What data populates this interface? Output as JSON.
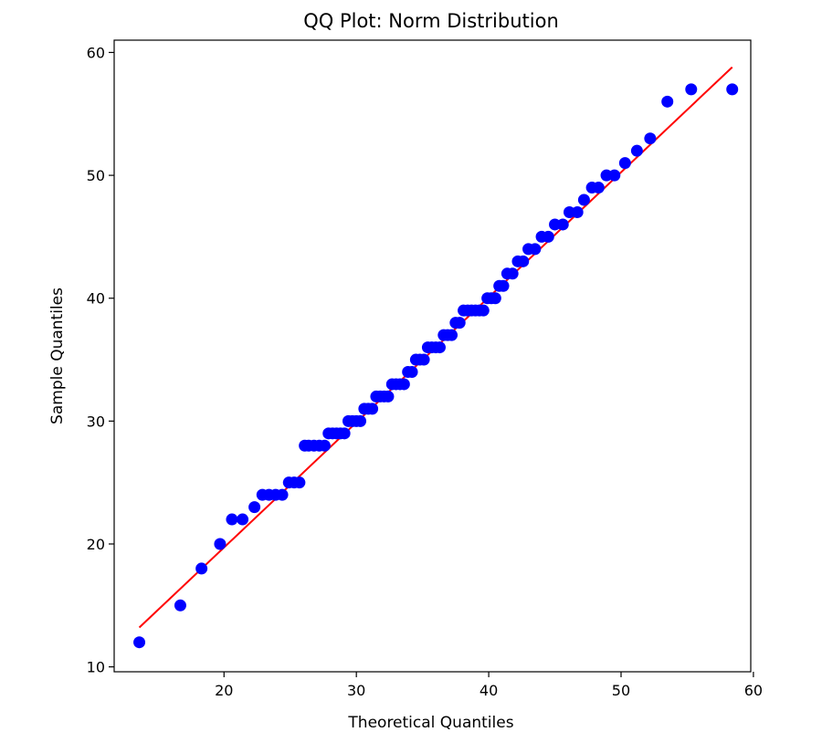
{
  "chart_data": {
    "type": "scatter",
    "title": "QQ Plot: Norm Distribution",
    "xlabel": "Theoretical Quantiles",
    "ylabel": "Sample Quantiles",
    "xlim": [
      11.7,
      59.8
    ],
    "ylim": [
      9.6,
      61
    ],
    "xticks": [
      20,
      30,
      40,
      50,
      60
    ],
    "yticks": [
      10,
      20,
      30,
      40,
      50,
      60
    ],
    "grid": false,
    "colors": {
      "points": "#0000ff",
      "line": "#ff0000",
      "axes": "#000000"
    },
    "series": [
      {
        "kind": "points",
        "x": [
          13.6,
          16.7,
          18.3,
          19.7,
          20.6,
          21.4,
          22.3,
          22.9,
          23.4,
          23.9,
          24.4,
          24.9,
          25.3,
          25.7,
          26.1,
          26.4,
          26.8,
          27.2,
          27.6,
          27.9,
          28.2,
          28.5,
          28.8,
          29.1,
          29.4,
          29.7,
          30.0,
          30.3,
          30.6,
          30.9,
          31.2,
          31.5,
          31.8,
          32.1,
          32.4,
          32.7,
          33.0,
          33.3,
          33.6,
          33.9,
          34.2,
          34.5,
          34.8,
          35.1,
          35.4,
          35.7,
          36.0,
          36.3,
          36.6,
          36.9,
          37.2,
          37.5,
          37.8,
          38.1,
          38.4,
          38.7,
          39.0,
          39.3,
          39.6,
          39.9,
          40.2,
          40.5,
          40.8,
          41.1,
          41.4,
          41.8,
          42.2,
          42.6,
          43.0,
          43.5,
          44.0,
          44.5,
          45.0,
          45.6,
          46.1,
          46.7,
          47.2,
          47.8,
          48.3,
          48.9,
          49.5,
          50.3,
          51.2,
          52.2,
          53.5,
          55.3,
          58.4
        ],
        "y": [
          12,
          15,
          18,
          20,
          22,
          22,
          23,
          24,
          24,
          24,
          24,
          25,
          25,
          25,
          28,
          28,
          28,
          28,
          28,
          29,
          29,
          29,
          29,
          29,
          30,
          30,
          30,
          30,
          31,
          31,
          31,
          32,
          32,
          32,
          32,
          33,
          33,
          33,
          33,
          34,
          34,
          35,
          35,
          35,
          36,
          36,
          36,
          36,
          37,
          37,
          37,
          38,
          38,
          39,
          39,
          39,
          39,
          39,
          39,
          40,
          40,
          40,
          41,
          41,
          42,
          42,
          43,
          43,
          44,
          44,
          45,
          45,
          46,
          46,
          47,
          47,
          48,
          49,
          49,
          50,
          50,
          51,
          52,
          53,
          56,
          57,
          57
        ]
      },
      {
        "kind": "fit-line",
        "x": [
          13.6,
          58.4
        ],
        "y": [
          13.2,
          58.8
        ]
      }
    ]
  }
}
